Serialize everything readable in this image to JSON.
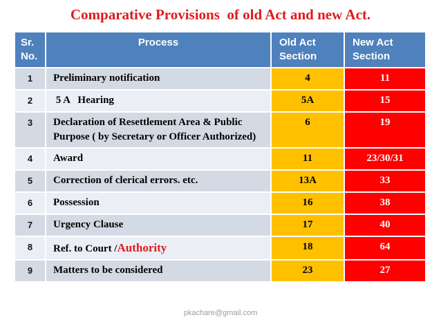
{
  "title": "Comparative Provisions  of old Act and new Act.",
  "footer": "pkachare@gmail.com",
  "colors": {
    "header_bg": "#4f81bd",
    "header_text": "#ffffff",
    "band_dark": "#d4dae4",
    "band_light": "#ebeef4",
    "old_act_bg": "#ffc000",
    "new_act_bg": "#fe0000",
    "title_color": "#dd1c1c",
    "highlight_color": "#e11c1c"
  },
  "table": {
    "headers": {
      "sr": "Sr. No.",
      "process": "Process",
      "old": "Old Act Section",
      "new": "New Act Section"
    },
    "rows": [
      {
        "sr": "1",
        "process": "Preliminary notification",
        "old": "4",
        "new": "11"
      },
      {
        "sr": "2",
        "process": " 5 A   Hearing",
        "old": "5A",
        "new": "15"
      },
      {
        "sr": "3",
        "process": "Declaration of Resettlement Area & Public Purpose ( by Secretary or Officer Authorized)",
        "old": "6",
        "new": "19"
      },
      {
        "sr": "4",
        "process": "Award",
        "old": "11",
        "new": "23/30/31"
      },
      {
        "sr": "5",
        "process": "Correction of clerical errors. etc.",
        "old": "13A",
        "new": "33"
      },
      {
        "sr": "6",
        "process": "Possession",
        "old": "16",
        "new": "38"
      },
      {
        "sr": "7",
        "process": "Urgency Clause",
        "old": "17",
        "new": "40"
      },
      {
        "sr": "8",
        "process": "Ref. to Court /",
        "process_highlight": "Authority",
        "old": "18",
        "new": "64"
      },
      {
        "sr": "9",
        "process": "Matters to be considered",
        "old": "23",
        "new": "27"
      }
    ]
  }
}
